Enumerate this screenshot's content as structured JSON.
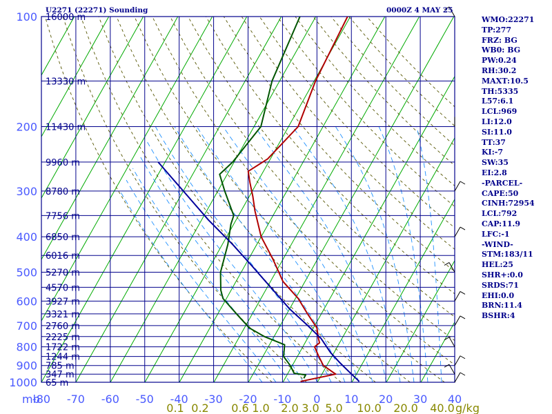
{
  "header": {
    "station": "U2271 (22271) Sounding",
    "time": "0000Z  4 MAY 25"
  },
  "chart_data": {
    "type": "line",
    "title": "U2271 (22271) Sounding",
    "xlabel": "",
    "ylabel": "mb",
    "xlim": [
      -80,
      40
    ],
    "pressure_levels": [
      100,
      200,
      300,
      400,
      500,
      600,
      700,
      800,
      900,
      1000
    ],
    "temperature_ticks": [
      -80,
      -70,
      -60,
      -50,
      -40,
      -30,
      -20,
      -10,
      0,
      10,
      20,
      30,
      40
    ],
    "temperature_tick_labels": [
      "-80",
      "-70",
      "-60",
      "-50",
      "-40",
      "-30",
      "-20",
      "-10",
      "0",
      "10",
      "20",
      "30",
      "40"
    ],
    "height_labels": [
      {
        "p": 100,
        "label": "16000 m"
      },
      {
        "p": 150,
        "label": "13330 m"
      },
      {
        "p": 200,
        "label": "11430 m"
      },
      {
        "p": 250,
        "label": "9960 m"
      },
      {
        "p": 300,
        "label": "8780 m"
      },
      {
        "p": 350,
        "label": "7756 m"
      },
      {
        "p": 400,
        "label": "6850 m"
      },
      {
        "p": 450,
        "label": "6016 m"
      },
      {
        "p": 500,
        "label": "5270 m"
      },
      {
        "p": 550,
        "label": "4570 m"
      },
      {
        "p": 600,
        "label": "3927 m"
      },
      {
        "p": 650,
        "label": "3321 m"
      },
      {
        "p": 700,
        "label": "2760 m"
      },
      {
        "p": 750,
        "label": "2225 m"
      },
      {
        "p": 800,
        "label": "1722 m"
      },
      {
        "p": 850,
        "label": "1244 m"
      },
      {
        "p": 900,
        "label": "785 m"
      },
      {
        "p": 950,
        "label": "347 m"
      },
      {
        "p": 1000,
        "label": "65 m"
      }
    ],
    "mixing_ratio_labels": [
      {
        "x": 0.1,
        "label": "0.1"
      },
      {
        "x": 0.2,
        "label": "0.2"
      },
      {
        "x": 0.6,
        "label": "0.6"
      },
      {
        "x": 1.0,
        "label": "1.0"
      },
      {
        "x": 2.0,
        "label": "2.0"
      },
      {
        "x": 3.0,
        "label": "3.0"
      },
      {
        "x": 5.0,
        "label": "5.0"
      },
      {
        "x": 10.0,
        "label": "10.0"
      },
      {
        "x": 20.0,
        "label": "20.0"
      },
      {
        "x": 40.0,
        "label": "40.0"
      }
    ],
    "mixing_ratio_unit": "g/kg",
    "series": [
      {
        "name": "",
        "role": "temperature",
        "color": "#b00000",
        "points": [
          [
            -50.8,
            100
          ],
          [
            -49.6,
            150
          ],
          [
            -47.2,
            200
          ],
          [
            -50.8,
            245
          ],
          [
            -54.4,
            265
          ],
          [
            -52.0,
            285
          ],
          [
            -49.0,
            310
          ],
          [
            -46.0,
            340
          ],
          [
            -40.0,
            400
          ],
          [
            -33.0,
            460
          ],
          [
            -26.4,
            530
          ],
          [
            -19.2,
            590
          ],
          [
            -14.0,
            650
          ],
          [
            -9.0,
            710
          ],
          [
            -6.8,
            760
          ],
          [
            -5.8,
            780
          ],
          [
            -6.6,
            800
          ],
          [
            -3.8,
            850
          ],
          [
            -1.0,
            900
          ],
          [
            3.0,
            940
          ],
          [
            4.0,
            950
          ],
          [
            -5.0,
            995
          ]
        ]
      },
      {
        "name": "",
        "role": "dewpoint",
        "color": "#005500",
        "points": [
          [
            -64.6,
            100
          ],
          [
            -62.2,
            150
          ],
          [
            -58.0,
            200
          ],
          [
            -60.4,
            250
          ],
          [
            -62.2,
            270
          ],
          [
            -58.0,
            300
          ],
          [
            -51.4,
            350
          ],
          [
            -50.8,
            370
          ],
          [
            -48.4,
            420
          ],
          [
            -46.0,
            500
          ],
          [
            -43.0,
            560
          ],
          [
            -41.0,
            590
          ],
          [
            -34.6,
            650
          ],
          [
            -28.6,
            710
          ],
          [
            -22.8,
            750
          ],
          [
            -15.6,
            790
          ],
          [
            -14.0,
            850
          ],
          [
            -10.6,
            900
          ],
          [
            -8.2,
            945
          ],
          [
            -4.6,
            955
          ],
          [
            -4.6,
            975
          ]
        ]
      },
      {
        "name": "",
        "role": "parcel",
        "color": "#00009c",
        "points": [
          [
            -82.0,
            250
          ],
          [
            -70.0,
            300
          ],
          [
            -58.0,
            360
          ],
          [
            -47.0,
            420
          ],
          [
            -38.0,
            480
          ],
          [
            -29.0,
            550
          ],
          [
            -20.0,
            630
          ],
          [
            -12.0,
            700
          ],
          [
            -6.0,
            760
          ],
          [
            -1.0,
            830
          ],
          [
            3.0,
            880
          ],
          [
            7.0,
            930
          ],
          [
            12.0,
            995
          ]
        ]
      }
    ],
    "wind_barbs_right_edge": true,
    "grid": true,
    "legend": "none"
  },
  "indices": [
    "WMO:22271",
    "TP:277",
    "FRZ: BG",
    "WB0: BG",
    "PW:0.24",
    "RH:30.2",
    "MAXT:10.5",
    "TH:5335",
    "L57:6.1",
    "LCL:969",
    "LI:12.0",
    "SI:11.0",
    "TT:37",
    "KI:-7",
    "SW:35",
    "EI:2.8",
    "-PARCEL-",
    "CAPE:50",
    "CINH:72954",
    "LCL:792",
    "CAP:11.9",
    "LFC:-1",
    "-WIND-",
    "STM:183/11",
    "HEL:25",
    "SHR+:0.0",
    "SRDS:71",
    "EHI:0.0",
    "BRN:11.4",
    "BSHR:4"
  ],
  "colors": {
    "grid": "#00008b",
    "isotherm": "#00aa00",
    "dry_adiabat": "#555500",
    "moist_adiabat": "#1e90ff",
    "temperature": "#b00000",
    "dewpoint": "#005500",
    "parcel": "#00009c",
    "axis_label": "#4a5aff",
    "mixing_label": "#888800"
  }
}
